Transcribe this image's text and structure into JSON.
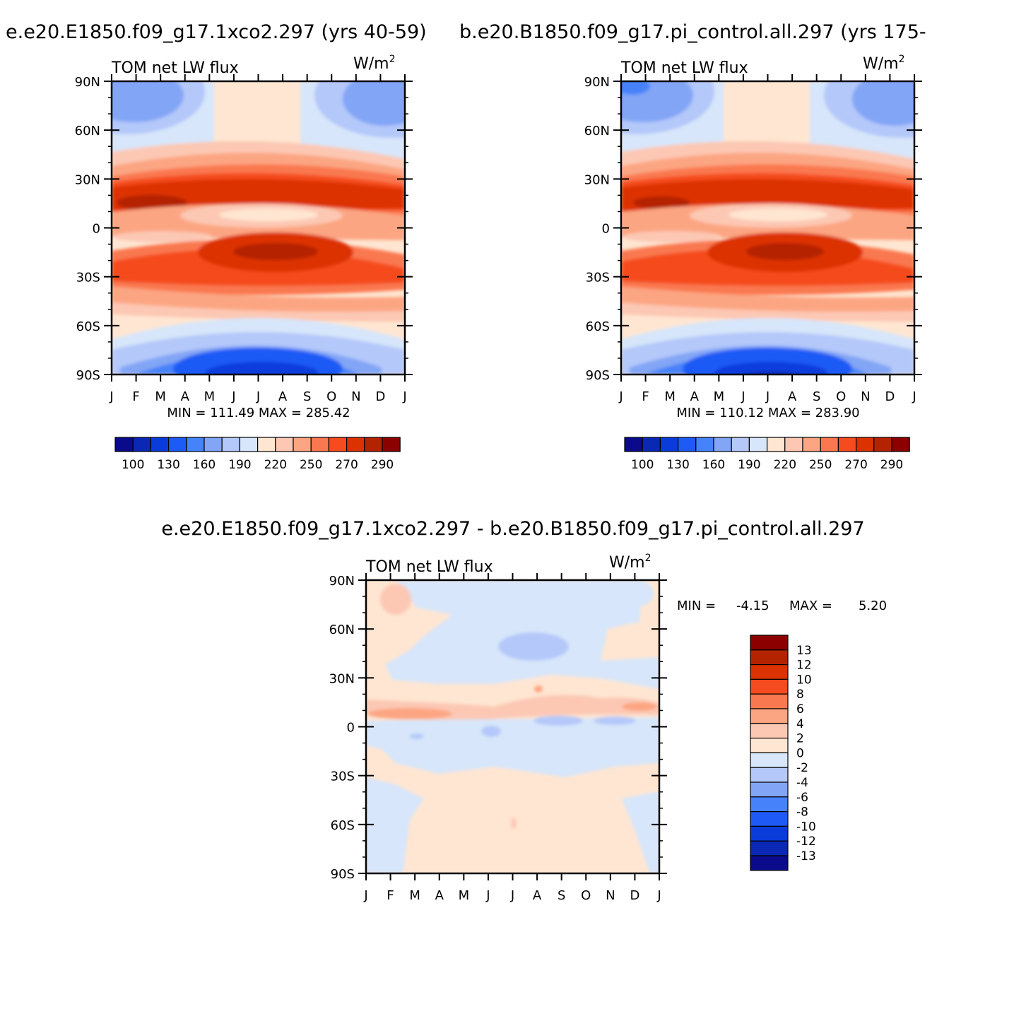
{
  "chart_data": [
    {
      "id": "top-left",
      "type": "heatmap",
      "title": "e.e20.E1850.f09_g17.1xco2.297 (yrs 40-59)",
      "variable": "TOM net LW flux",
      "units": "W/m",
      "units_exp": "2",
      "x_ticks": [
        "J",
        "F",
        "M",
        "A",
        "M",
        "J",
        "J",
        "A",
        "S",
        "O",
        "N",
        "D",
        "J"
      ],
      "y_ticks": [
        "90N",
        "60N",
        "30N",
        "0",
        "30S",
        "60S",
        "90S"
      ],
      "y_values": [
        90,
        60,
        30,
        0,
        -30,
        -60,
        -90
      ],
      "stats": "MIN = 111.49 MAX = 285.42",
      "levels": [
        100,
        110,
        120,
        130,
        140,
        150,
        160,
        170,
        180,
        190,
        200,
        210,
        220,
        230,
        240,
        250,
        260,
        270,
        280,
        290
      ],
      "colorbar_labels": [
        "100",
        "130",
        "160",
        "190",
        "220",
        "250",
        "270",
        "290"
      ],
      "colorbar_colors": [
        "#0a0a8a",
        "#0a28b4",
        "#0a3cdc",
        "#1e5af5",
        "#4682fa",
        "#82a5f5",
        "#b4c8fa",
        "#d7e6fa",
        "#ffe6d2",
        "#fcc8b4",
        "#fca582",
        "#fa7850",
        "#f54b1e",
        "#dc3200",
        "#b42300",
        "#8c0000"
      ]
    },
    {
      "id": "top-right",
      "type": "heatmap",
      "title": "b.e20.B1850.f09_g17.pi_control.all.297 (yrs 175-",
      "variable": "TOM net LW flux",
      "units": "W/m",
      "units_exp": "2",
      "x_ticks": [
        "J",
        "F",
        "M",
        "A",
        "M",
        "J",
        "J",
        "A",
        "S",
        "O",
        "N",
        "D",
        "J"
      ],
      "y_ticks": [
        "90N",
        "60N",
        "30N",
        "0",
        "30S",
        "60S",
        "90S"
      ],
      "y_values": [
        90,
        60,
        30,
        0,
        -30,
        -60,
        -90
      ],
      "stats": "MIN = 110.12 MAX = 283.90",
      "colorbar_labels": [
        "100",
        "130",
        "160",
        "190",
        "220",
        "250",
        "270",
        "290"
      ],
      "colorbar_colors": [
        "#0a0a8a",
        "#0a28b4",
        "#0a3cdc",
        "#1e5af5",
        "#4682fa",
        "#82a5f5",
        "#b4c8fa",
        "#d7e6fa",
        "#ffe6d2",
        "#fcc8b4",
        "#fca582",
        "#fa7850",
        "#f54b1e",
        "#dc3200",
        "#b42300",
        "#8c0000"
      ]
    },
    {
      "id": "bottom-diff",
      "type": "heatmap",
      "title": "e.e20.E1850.f09_g17.1xco2.297 - b.e20.B1850.f09_g17.pi_control.all.297",
      "variable": "TOM net LW flux",
      "units": "W/m",
      "units_exp": "2",
      "x_ticks": [
        "J",
        "F",
        "M",
        "A",
        "M",
        "J",
        "J",
        "A",
        "S",
        "O",
        "N",
        "D",
        "J"
      ],
      "y_ticks": [
        "90N",
        "60N",
        "30N",
        "0",
        "30S",
        "60S",
        "90S"
      ],
      "y_values": [
        90,
        60,
        30,
        0,
        -30,
        -60,
        -90
      ],
      "stats_min_label": "MIN =",
      "stats_min": "-4.15",
      "stats_max_label": "MAX =",
      "stats_max": "5.20",
      "colorbar_labels_top_to_bottom": [
        "13",
        "12",
        "10",
        "8",
        "6",
        "4",
        "2",
        "0",
        "-2",
        "-4",
        "-6",
        "-8",
        "-10",
        "-12",
        "-13"
      ],
      "colorbar_colors_top_to_bottom": [
        "#8c0000",
        "#b42300",
        "#dc3200",
        "#f54b1e",
        "#fa7850",
        "#fca582",
        "#fcc8b4",
        "#ffe6d2",
        "#d7e6fa",
        "#b4c8fa",
        "#82a5f5",
        "#4682fa",
        "#1e5af5",
        "#0a3cdc",
        "#0a28b4",
        "#0a0a8a"
      ]
    }
  ]
}
